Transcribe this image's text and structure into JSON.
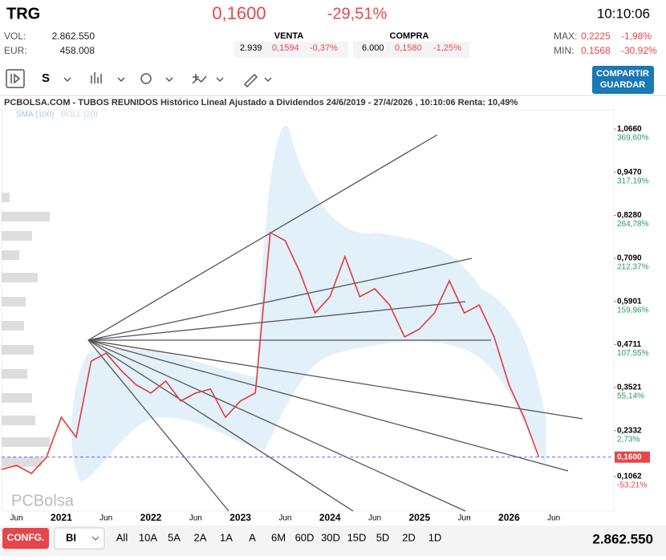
{
  "header": {
    "ticker": "TRG",
    "price": "0,1600",
    "change": "-29,51%",
    "time": "10:10:06"
  },
  "stats": {
    "vol_label": "VOL:",
    "vol": "2.862.550",
    "eur_label": "EUR:",
    "eur": "458.008",
    "venta": {
      "title": "VENTA",
      "qty": "2.939",
      "price": "0,1594",
      "change": "-0,37%"
    },
    "compra": {
      "title": "COMPRA",
      "qty": "6.000",
      "price": "0,1580",
      "change": "-1,25%"
    },
    "max_label": "MAX:",
    "max": "0,2225",
    "max_change": "-1,98%",
    "min_label": "MIN:",
    "min": "0,1568",
    "min_change": "-30,92%"
  },
  "toolbar": {
    "period": "S",
    "button": [
      "COMPARTIR",
      "GUARDAR"
    ]
  },
  "chart": {
    "title": "PCBOLSA.COM - TUBOS REUNIDOS Histórico Lineal Ajustado a Dividendos 24/6/2019 - 27/4/2026 , 10:10:06 Renta: 10,49%",
    "indicators": [
      "SMA (100)",
      "BOLL (20)"
    ],
    "watermark": "PCBolsa",
    "ylim": [
      0.011,
      1.119
    ],
    "xticks": [
      "Jun",
      "2021",
      "Jun",
      "2022",
      "Jun",
      "2023",
      "Jun",
      "2024",
      "Jun",
      "2025",
      "Jun",
      "2026",
      "Jun"
    ],
    "yticks": [
      {
        "value": 1.066,
        "label": "1,0660",
        "pct": "369,60%"
      },
      {
        "value": 0.947,
        "label": "0,9470",
        "pct": "317,19%"
      },
      {
        "value": 0.828,
        "label": "0,8280",
        "pct": "264,78%"
      },
      {
        "value": 0.709,
        "label": "0,7090",
        "pct": "212,37%"
      },
      {
        "value": 0.5901,
        "label": "0,5901",
        "pct": "159,96%"
      },
      {
        "value": 0.4711,
        "label": "0,4711",
        "pct": "107,55%"
      },
      {
        "value": 0.3521,
        "label": "0,3521",
        "pct": "55,14%"
      },
      {
        "value": 0.2332,
        "label": "0,2332",
        "pct": "2,73%"
      },
      {
        "value": 0.1062,
        "label": "0,1062",
        "pct": "-53,21%"
      }
    ],
    "last": {
      "value": 0.16,
      "label": "0,1600"
    },
    "price": [
      0.126,
      0.137,
      0.115,
      0.159,
      0.27,
      0.215,
      0.425,
      0.447,
      0.4,
      0.36,
      0.337,
      0.37,
      0.315,
      0.337,
      0.348,
      0.27,
      0.315,
      0.337,
      0.78,
      0.758,
      0.67,
      0.558,
      0.603,
      0.714,
      0.603,
      0.625,
      0.58,
      0.492,
      0.514,
      0.558,
      0.647,
      0.558,
      0.58,
      0.492,
      0.359,
      0.27,
      0.16
    ]
  },
  "footer": {
    "config": "CONFG.",
    "mode": "BI",
    "ranges": [
      "All",
      "10A",
      "5A",
      "2A",
      "1A",
      "A",
      "6M",
      "60D",
      "30D",
      "15D",
      "5D",
      "2D",
      "1D"
    ],
    "volume": "2.862.550"
  }
}
